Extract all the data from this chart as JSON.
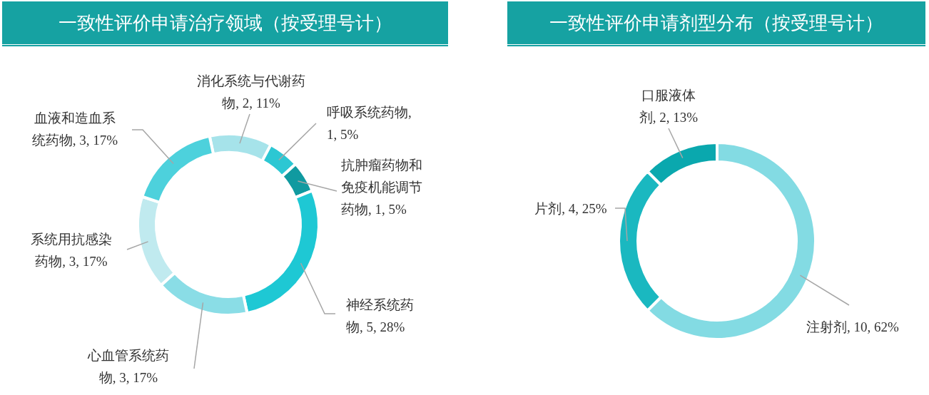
{
  "chart_data": [
    {
      "type": "donut",
      "title": "一致性评价申请治疗领域（按受理号计）",
      "categories": [
        "消化系统与代谢药物",
        "呼吸系统药物",
        "抗肿瘤药物和免疫机能调节药物",
        "神经系统药物",
        "心血管系统药物",
        "系统用抗感染药物",
        "血液和造血系统药物"
      ],
      "values": [
        2,
        1,
        1,
        5,
        3,
        3,
        3
      ],
      "value_labels": [
        ", 2, 11%",
        ", 1, 5%",
        ", 1, 5%",
        ", 5, 28%",
        ", 3, 17%",
        ", 3, 17%",
        ", 3, 17%"
      ],
      "colors": [
        "#a6e3ea",
        "#2cc7d3",
        "#109aa0",
        "#1ec8d4",
        "#8adde6",
        "#c0eaef",
        "#4dd1dc"
      ]
    },
    {
      "type": "donut",
      "title": "一致性评价申请剂型分布（按受理号计）",
      "categories": [
        "注射剂",
        "片剂",
        "口服液体剂"
      ],
      "values": [
        10,
        4,
        2
      ],
      "value_labels": [
        ", 10, 62%",
        ", 4, 25%",
        ", 2, 13%"
      ],
      "colors": [
        "#83dbe3",
        "#1ab8c0",
        "#0aa8ae"
      ]
    }
  ]
}
